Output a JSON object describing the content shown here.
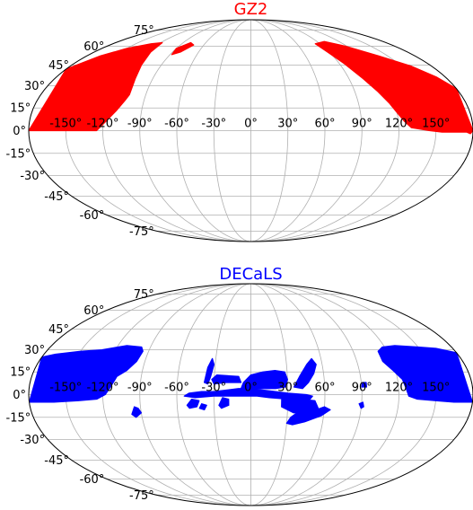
{
  "chart_data": [
    {
      "type": "scatter",
      "projection": "mollweide",
      "title": "GZ2",
      "title_color": "#ff0000",
      "marker_color": "#ff0000",
      "xlabel": "",
      "ylabel": "",
      "x_ticks": [
        "-150°",
        "-120°",
        "-90°",
        "-60°",
        "-30°",
        "0°",
        "30°",
        "60°",
        "90°",
        "120°",
        "150°"
      ],
      "y_ticks": [
        "75°",
        "60°",
        "45°",
        "30°",
        "15°",
        "0°",
        "-15°",
        "-30°",
        "-45°",
        "-60°",
        "-75°"
      ],
      "grid": true,
      "xlim": [
        -180,
        180
      ],
      "ylim": [
        -90,
        90
      ],
      "regions": [
        {
          "polygon": [
            [
              -180,
              0
            ],
            [
              -180,
              42
            ],
            [
              -165,
              52
            ],
            [
              -150,
              58
            ],
            [
              -130,
              62
            ],
            [
              -118,
              63
            ],
            [
              -115,
              55
            ],
            [
              -110,
              45
            ],
            [
              -106,
              35
            ],
            [
              -104,
              24
            ],
            [
              -106,
              20
            ],
            [
              -111,
              13
            ],
            [
              -118,
              6
            ],
            [
              -125,
              0
            ]
          ]
        },
        {
          "polygon": [
            [
              -90,
              58
            ],
            [
              -80,
              63
            ],
            [
              -73,
              61
            ],
            [
              -81,
              55
            ],
            [
              -88,
              53
            ]
          ]
        },
        {
          "polygon": [
            [
              180,
              0
            ],
            [
              180,
              28
            ],
            [
              172,
              36
            ],
            [
              160,
              44
            ],
            [
              140,
              52
            ],
            [
              118,
              60
            ],
            [
              100,
              64
            ],
            [
              84,
              62
            ],
            [
              88,
              55
            ],
            [
              95,
              46
            ],
            [
              103,
              35
            ],
            [
              110,
              26
            ],
            [
              116,
              18
            ],
            [
              120,
              12
            ],
            [
              125,
              6
            ],
            [
              130,
              2
            ],
            [
              145,
              0
            ],
            [
              155,
              -1
            ],
            [
              165,
              -1
            ],
            [
              175,
              -1
            ],
            [
              178,
              -2
            ]
          ]
        }
      ]
    },
    {
      "type": "scatter",
      "projection": "mollweide",
      "title": "DECaLS",
      "title_color": "#0000ff",
      "marker_color": "#0000ff",
      "xlabel": "",
      "ylabel": "",
      "x_ticks": [
        "-150°",
        "-120°",
        "-90°",
        "-60°",
        "-30°",
        "0°",
        "30°",
        "60°",
        "90°",
        "120°",
        "150°"
      ],
      "y_ticks": [
        "75°",
        "60°",
        "45°",
        "30°",
        "15°",
        "0°",
        "-15°",
        "-30°",
        "-45°",
        "-60°",
        "-75°"
      ],
      "grid": true,
      "xlim": [
        -180,
        180
      ],
      "ylim": [
        -90,
        90
      ],
      "regions": [
        {
          "polygon": [
            [
              -180,
              -5
            ],
            [
              -180,
              25
            ],
            [
              -170,
              27
            ],
            [
              -150,
              29
            ],
            [
              -132,
              30
            ],
            [
              -112,
              33
            ],
            [
              -98,
              32
            ],
            [
              -95,
              29
            ],
            [
              -97,
              22
            ],
            [
              -103,
              16
            ],
            [
              -110,
              12
            ],
            [
              -114,
              5
            ],
            [
              -118,
              0
            ],
            [
              -125,
              -3
            ],
            [
              -140,
              -4
            ],
            [
              -160,
              -5
            ]
          ]
        },
        {
          "polygon": [
            [
              180,
              -5
            ],
            [
              180,
              28
            ],
            [
              165,
              31
            ],
            [
              150,
              32
            ],
            [
              130,
              33
            ],
            [
              118,
              32
            ],
            [
              112,
              29
            ],
            [
              112,
              22
            ],
            [
              118,
              16
            ],
            [
              124,
              10
            ],
            [
              126,
              4
            ],
            [
              128,
              -1
            ],
            [
              135,
              -3
            ],
            [
              150,
              -4
            ],
            [
              165,
              -5
            ]
          ]
        },
        {
          "polygon": [
            [
              -54,
              -1
            ],
            [
              -50,
              1
            ],
            [
              -40,
              2
            ],
            [
              -30,
              2
            ],
            [
              -20,
              3
            ],
            [
              -10,
              4
            ],
            [
              0,
              4
            ],
            [
              10,
              3
            ],
            [
              20,
              2
            ],
            [
              30,
              1
            ],
            [
              45,
              0
            ],
            [
              50,
              -1
            ],
            [
              48,
              -3
            ],
            [
              30,
              -3
            ],
            [
              15,
              -2
            ],
            [
              5,
              -1
            ],
            [
              -10,
              -1
            ],
            [
              -30,
              -1
            ],
            [
              -45,
              -2
            ]
          ]
        },
        {
          "polygon": [
            [
              -8,
              4
            ],
            [
              -6,
              8
            ],
            [
              0,
              13
            ],
            [
              10,
              15
            ],
            [
              20,
              16
            ],
            [
              28,
              15
            ],
            [
              30,
              10
            ],
            [
              28,
              5
            ],
            [
              20,
              4
            ],
            [
              5,
              4
            ]
          ]
        },
        {
          "polygon": [
            [
              35,
              5
            ],
            [
              40,
              12
            ],
            [
              47,
              20
            ],
            [
              52,
              24
            ],
            [
              55,
              20
            ],
            [
              52,
              14
            ],
            [
              47,
              8
            ],
            [
              42,
              4
            ]
          ]
        },
        {
          "polygon": [
            [
              25,
              -2
            ],
            [
              25,
              -8
            ],
            [
              35,
              -12
            ],
            [
              50,
              -12
            ],
            [
              55,
              -9
            ],
            [
              52,
              -4
            ],
            [
              40,
              -3
            ]
          ]
        },
        {
          "polygon": [
            [
              38,
              -12
            ],
            [
              33,
              -15
            ],
            [
              30,
              -19
            ],
            [
              35,
              -20
            ],
            [
              45,
              -18
            ],
            [
              58,
              -14
            ],
            [
              65,
              -10
            ],
            [
              60,
              -8
            ],
            [
              50,
              -11
            ]
          ]
        },
        {
          "polygon": [
            [
              -38,
              8
            ],
            [
              -36,
              18
            ],
            [
              -33,
              24
            ],
            [
              -31,
              20
            ],
            [
              -33,
              12
            ],
            [
              -35,
              7
            ]
          ]
        },
        {
          "polygon": [
            [
              -32,
              10
            ],
            [
              -28,
              13
            ],
            [
              -10,
              12
            ],
            [
              -8,
              8
            ],
            [
              -20,
              8
            ],
            [
              -30,
              7
            ]
          ]
        },
        {
          "polygon": [
            [
              -48,
              -3
            ],
            [
              -52,
              -7
            ],
            [
              -50,
              -9
            ],
            [
              -44,
              -8
            ],
            [
              -42,
              -4
            ]
          ]
        },
        {
          "polygon": [
            [
              -23,
              -2
            ],
            [
              -26,
              -7
            ],
            [
              -24,
              -9
            ],
            [
              -18,
              -7
            ],
            [
              -18,
              -3
            ]
          ]
        },
        {
          "polygon": [
            [
              -40,
              -6
            ],
            [
              -42,
              -9
            ],
            [
              -38,
              -10
            ],
            [
              -36,
              -7
            ]
          ]
        },
        {
          "polygon": [
            [
              -95,
              -8
            ],
            [
              -98,
              -13
            ],
            [
              -95,
              -15
            ],
            [
              -90,
              -12
            ],
            [
              -92,
              -9
            ]
          ]
        },
        {
          "polygon": [
            [
              90,
              5
            ],
            [
              91,
              8
            ],
            [
              94,
              8
            ],
            [
              94,
              5
            ]
          ]
        },
        {
          "polygon": [
            [
              88,
              -6
            ],
            [
              90,
              -9
            ],
            [
              92,
              -8
            ],
            [
              91,
              -5
            ]
          ]
        }
      ]
    }
  ]
}
